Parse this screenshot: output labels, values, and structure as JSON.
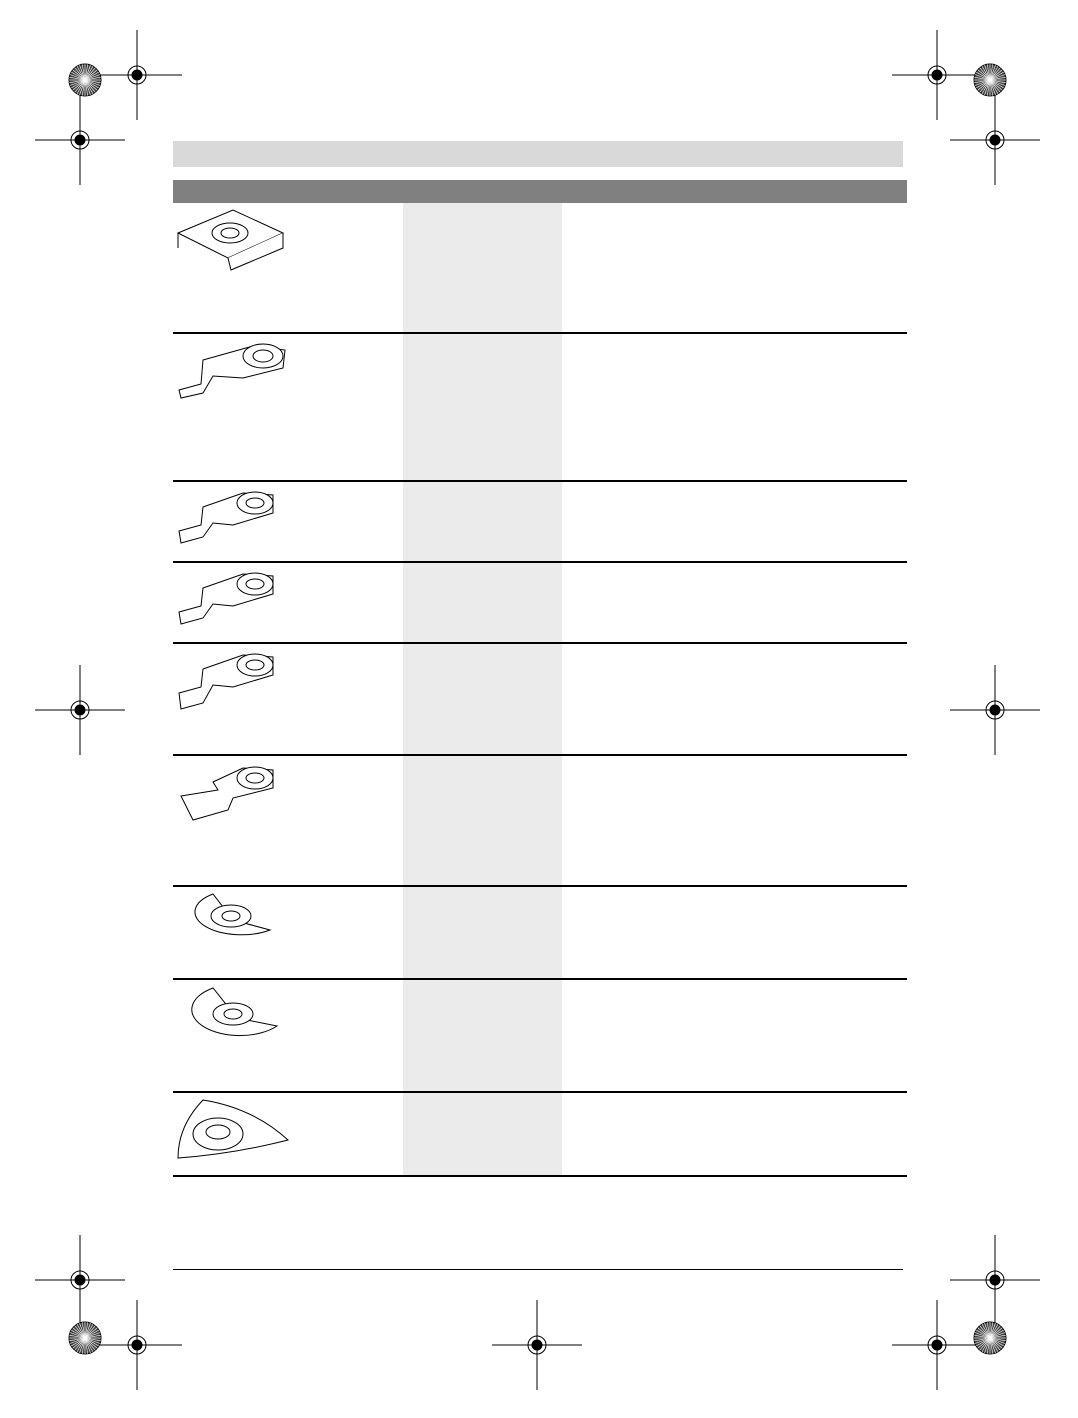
{
  "colors": {
    "top_bar": "#d9d9d9",
    "table_header": "#808080",
    "shaded_column": "#ebebeb",
    "rule": "#000000"
  },
  "table": {
    "rows": [
      {
        "illustration": "plunge-cutting-guide-icon"
      },
      {
        "illustration": "plunge-saw-blade-narrow-icon"
      },
      {
        "illustration": "plunge-saw-blade-icon"
      },
      {
        "illustration": "plunge-saw-blade-fine-tooth-icon"
      },
      {
        "illustration": "plunge-saw-blade-carbide-icon"
      },
      {
        "illustration": "scraper-blade-icon"
      },
      {
        "illustration": "segment-saw-blade-icon"
      },
      {
        "illustration": "segment-saw-blade-large-icon"
      },
      {
        "illustration": "delta-sanding-plate-icon"
      }
    ]
  },
  "print_marks": {
    "registration": "registration-crosshair-icon",
    "color_wheel": "color-wheel-icon"
  }
}
